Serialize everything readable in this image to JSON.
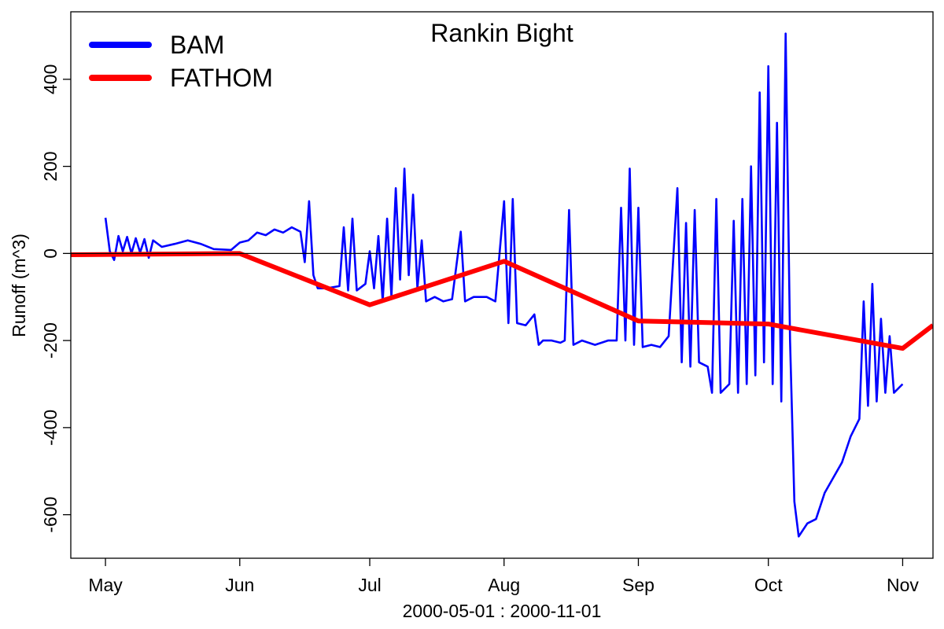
{
  "chart_data": {
    "type": "line",
    "title": "Rankin Bight",
    "xlabel": "2000-05-01 : 2000-11-01",
    "ylabel": "Runoff (m^3)",
    "xlim": [
      "2000-04-23",
      "2000-11-08"
    ],
    "ylim": [
      -700,
      555
    ],
    "x_ticks": [
      {
        "date": "2000-05-01",
        "label": "May"
      },
      {
        "date": "2000-06-01",
        "label": "Jun"
      },
      {
        "date": "2000-07-01",
        "label": "Jul"
      },
      {
        "date": "2000-08-01",
        "label": "Aug"
      },
      {
        "date": "2000-09-01",
        "label": "Sep"
      },
      {
        "date": "2000-10-01",
        "label": "Oct"
      },
      {
        "date": "2000-11-01",
        "label": "Nov"
      }
    ],
    "y_ticks": [
      -600,
      -400,
      -200,
      0,
      200,
      400
    ],
    "reference_line": 0,
    "grid": false,
    "legend_position": "top-left",
    "series": [
      {
        "name": "BAM",
        "color": "#0000ff",
        "points": [
          [
            "2000-05-01",
            82
          ],
          [
            "2000-05-02",
            5
          ],
          [
            "2000-05-03",
            -15
          ],
          [
            "2000-05-04",
            40
          ],
          [
            "2000-05-05",
            5
          ],
          [
            "2000-05-06",
            38
          ],
          [
            "2000-05-07",
            0
          ],
          [
            "2000-05-08",
            35
          ],
          [
            "2000-05-09",
            2
          ],
          [
            "2000-05-10",
            33
          ],
          [
            "2000-05-11",
            -10
          ],
          [
            "2000-05-12",
            30
          ],
          [
            "2000-05-14",
            15
          ],
          [
            "2000-05-17",
            22
          ],
          [
            "2000-05-20",
            30
          ],
          [
            "2000-05-23",
            22
          ],
          [
            "2000-05-26",
            10
          ],
          [
            "2000-05-30",
            8
          ],
          [
            "2000-06-01",
            25
          ],
          [
            "2000-06-03",
            30
          ],
          [
            "2000-06-05",
            48
          ],
          [
            "2000-06-07",
            42
          ],
          [
            "2000-06-09",
            55
          ],
          [
            "2000-06-11",
            48
          ],
          [
            "2000-06-13",
            60
          ],
          [
            "2000-06-15",
            50
          ],
          [
            "2000-06-16",
            -20
          ],
          [
            "2000-06-17",
            120
          ],
          [
            "2000-06-18",
            -50
          ],
          [
            "2000-06-19",
            -80
          ],
          [
            "2000-06-21",
            -80
          ],
          [
            "2000-06-24",
            -75
          ],
          [
            "2000-06-25",
            60
          ],
          [
            "2000-06-26",
            -85
          ],
          [
            "2000-06-27",
            80
          ],
          [
            "2000-06-28",
            -85
          ],
          [
            "2000-06-30",
            -70
          ],
          [
            "2000-07-01",
            5
          ],
          [
            "2000-07-02",
            -80
          ],
          [
            "2000-07-03",
            40
          ],
          [
            "2000-07-04",
            -110
          ],
          [
            "2000-07-05",
            80
          ],
          [
            "2000-07-06",
            -100
          ],
          [
            "2000-07-07",
            150
          ],
          [
            "2000-07-08",
            -60
          ],
          [
            "2000-07-09",
            195
          ],
          [
            "2000-07-10",
            -50
          ],
          [
            "2000-07-11",
            135
          ],
          [
            "2000-07-12",
            -80
          ],
          [
            "2000-07-13",
            30
          ],
          [
            "2000-07-14",
            -110
          ],
          [
            "2000-07-16",
            -100
          ],
          [
            "2000-07-18",
            -110
          ],
          [
            "2000-07-20",
            -105
          ],
          [
            "2000-07-22",
            50
          ],
          [
            "2000-07-23",
            -110
          ],
          [
            "2000-07-25",
            -100
          ],
          [
            "2000-07-28",
            -100
          ],
          [
            "2000-07-30",
            -110
          ],
          [
            "2000-08-01",
            120
          ],
          [
            "2000-08-02",
            -160
          ],
          [
            "2000-08-03",
            125
          ],
          [
            "2000-08-04",
            -160
          ],
          [
            "2000-08-06",
            -165
          ],
          [
            "2000-08-08",
            -140
          ],
          [
            "2000-08-09",
            -210
          ],
          [
            "2000-08-10",
            -200
          ],
          [
            "2000-08-12",
            -200
          ],
          [
            "2000-08-14",
            -205
          ],
          [
            "2000-08-15",
            -200
          ],
          [
            "2000-08-16",
            100
          ],
          [
            "2000-08-17",
            -210
          ],
          [
            "2000-08-19",
            -200
          ],
          [
            "2000-08-22",
            -210
          ],
          [
            "2000-08-25",
            -200
          ],
          [
            "2000-08-27",
            -200
          ],
          [
            "2000-08-28",
            105
          ],
          [
            "2000-08-29",
            -200
          ],
          [
            "2000-08-30",
            195
          ],
          [
            "2000-08-31",
            -210
          ],
          [
            "2000-09-01",
            105
          ],
          [
            "2000-09-02",
            -215
          ],
          [
            "2000-09-04",
            -210
          ],
          [
            "2000-09-06",
            -215
          ],
          [
            "2000-09-08",
            -190
          ],
          [
            "2000-09-10",
            150
          ],
          [
            "2000-09-11",
            -250
          ],
          [
            "2000-09-12",
            70
          ],
          [
            "2000-09-13",
            -260
          ],
          [
            "2000-09-14",
            100
          ],
          [
            "2000-09-15",
            -250
          ],
          [
            "2000-09-17",
            -260
          ],
          [
            "2000-09-18",
            -320
          ],
          [
            "2000-09-19",
            125
          ],
          [
            "2000-09-20",
            -320
          ],
          [
            "2000-09-22",
            -300
          ],
          [
            "2000-09-23",
            75
          ],
          [
            "2000-09-24",
            -320
          ],
          [
            "2000-09-25",
            125
          ],
          [
            "2000-09-26",
            -300
          ],
          [
            "2000-09-27",
            200
          ],
          [
            "2000-09-28",
            -280
          ],
          [
            "2000-09-29",
            370
          ],
          [
            "2000-09-30",
            -250
          ],
          [
            "2000-10-01",
            430
          ],
          [
            "2000-10-02",
            -300
          ],
          [
            "2000-10-03",
            300
          ],
          [
            "2000-10-04",
            -340
          ],
          [
            "2000-10-05",
            505
          ],
          [
            "2000-10-06",
            -200
          ],
          [
            "2000-10-07",
            -570
          ],
          [
            "2000-10-08",
            -650
          ],
          [
            "2000-10-10",
            -620
          ],
          [
            "2000-10-12",
            -610
          ],
          [
            "2000-10-14",
            -550
          ],
          [
            "2000-10-16",
            -515
          ],
          [
            "2000-10-18",
            -480
          ],
          [
            "2000-10-20",
            -420
          ],
          [
            "2000-10-22",
            -380
          ],
          [
            "2000-10-23",
            -110
          ],
          [
            "2000-10-24",
            -350
          ],
          [
            "2000-10-25",
            -70
          ],
          [
            "2000-10-26",
            -340
          ],
          [
            "2000-10-27",
            -150
          ],
          [
            "2000-10-28",
            -320
          ],
          [
            "2000-10-29",
            -190
          ],
          [
            "2000-10-30",
            -320
          ],
          [
            "2000-11-01",
            -300
          ]
        ]
      },
      {
        "name": "FATHOM",
        "color": "#ff0000",
        "points": [
          [
            "2000-04-23",
            -3
          ],
          [
            "2000-06-01",
            0
          ],
          [
            "2000-07-01",
            -118
          ],
          [
            "2000-08-01",
            -18
          ],
          [
            "2000-09-01",
            -155
          ],
          [
            "2000-10-01",
            -162
          ],
          [
            "2000-11-01",
            -218
          ],
          [
            "2000-11-08",
            -165
          ]
        ]
      }
    ]
  }
}
